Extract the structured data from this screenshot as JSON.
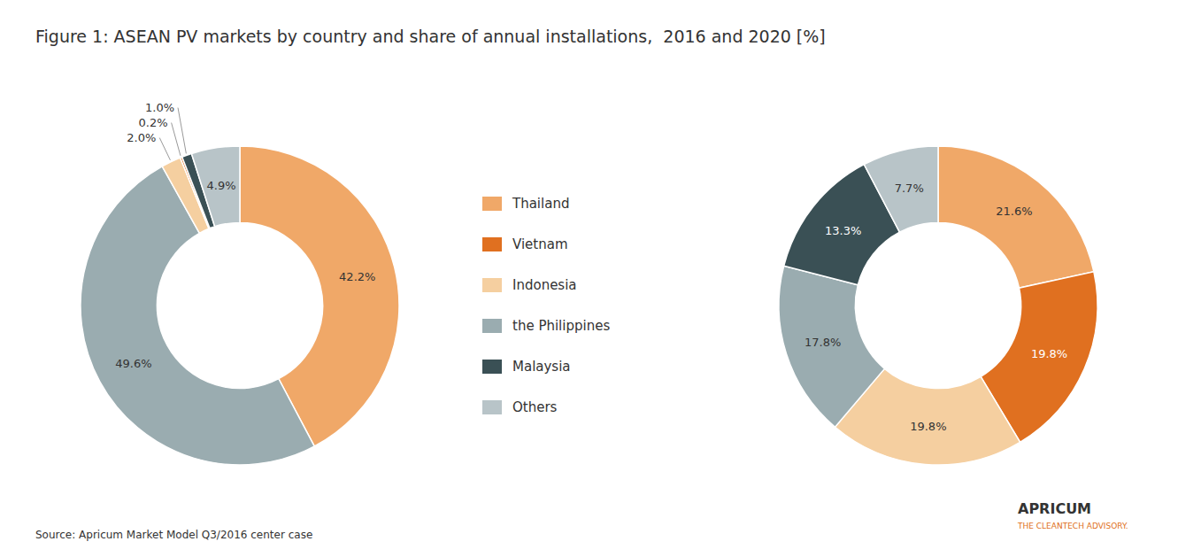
{
  "chart_data": [
    {
      "type": "pie",
      "title": "Figure 1: ASEAN PV markets by country and share of annual installations,  2016 and 2020 [%]",
      "categories": [
        "Thailand",
        "the Philippines",
        "Indonesia",
        "Vietnam",
        "Malaysia",
        "Others"
      ],
      "values": [
        42.2,
        49.6,
        2.0,
        0.2,
        1.0,
        4.9
      ],
      "value_labels": [
        "42.2%",
        "49.6%",
        "2.0%",
        "0.2%",
        "1.0%",
        "4.9%"
      ],
      "colors": [
        "#f0a868",
        "#9aacb0",
        "#f5cfa0",
        "#e07020",
        "#3a5055",
        "#b8c4c8"
      ],
      "data_labels": true,
      "annotations": [
        "Source: Apricum Market Model Q3/2016 center case",
        "APRICUM",
        "THE CLEANTECH ADVISORY."
      ]
    },
    {
      "type": "pie",
      "categories": [
        "Thailand",
        "Vietnam",
        "Indonesia",
        "the Philippines",
        "Malaysia",
        "Others"
      ],
      "values": [
        21.6,
        19.8,
        19.8,
        17.8,
        13.3,
        7.7
      ],
      "value_labels": [
        "21.6%",
        "19.8%",
        "19.8%",
        "17.8%",
        "13.3%",
        "7.7%"
      ],
      "colors": [
        "#f0a868",
        "#e07020",
        "#f5cfa0",
        "#9aacb0",
        "#3a5055",
        "#b8c4c8"
      ],
      "data_labels": true,
      "legend": "center"
    }
  ]
}
